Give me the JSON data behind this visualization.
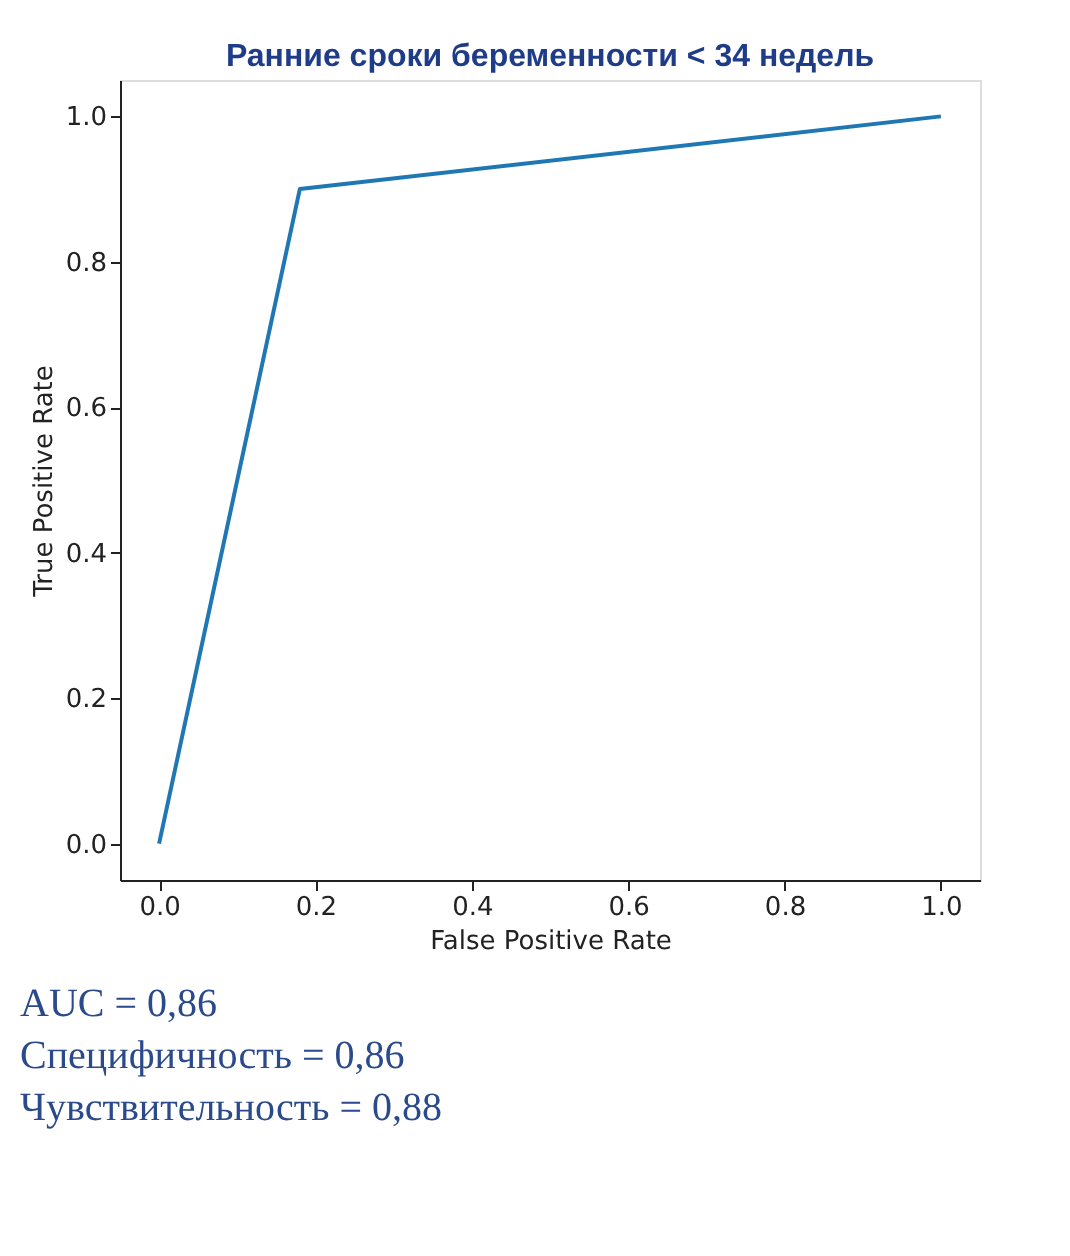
{
  "chart_data": {
    "type": "line",
    "title": "Ранние сроки беременности < 34 недель",
    "xlabel": "False Positive Rate",
    "ylabel": "True Positive Rate",
    "x": [
      0.0,
      0.18,
      1.0
    ],
    "series": [
      {
        "color": "#1f77b4",
        "values": [
          0.0,
          0.9,
          1.0
        ]
      }
    ],
    "xlim": [
      -0.05,
      1.05
    ],
    "ylim": [
      -0.05,
      1.05
    ],
    "xticks": [
      {
        "value": 0,
        "label": "0.0"
      },
      0.2,
      0.4,
      0.6,
      0.8,
      {
        "value": 1,
        "label": "1.0"
      }
    ],
    "yticks": [
      {
        "value": 0,
        "label": "0.0"
      },
      0.2,
      0.4,
      0.6,
      0.8,
      {
        "value": 1,
        "label": "1.0"
      }
    ],
    "grid": false,
    "marker": "none",
    "line_style": "solid",
    "annotations": [
      "AUC = 0,86",
      "Специфичность = 0,86",
      "Чувствительность = 0,88"
    ]
  }
}
